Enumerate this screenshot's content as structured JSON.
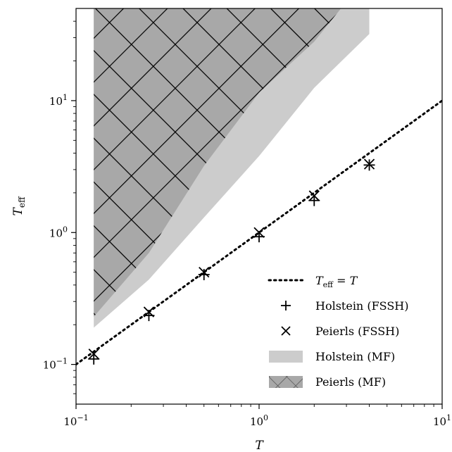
{
  "chart_data": {
    "type": "line",
    "x_scale": "log",
    "y_scale": "log",
    "xlim": [
      0.1,
      10
    ],
    "ylim": [
      0.05,
      50
    ],
    "xlabel": "T",
    "ylabel_base": "T",
    "ylabel_sub": "eff",
    "x_ticks": [
      {
        "value": 0.1,
        "base": "10",
        "exp": "−1"
      },
      {
        "value": 1,
        "base": "10",
        "exp": "0"
      },
      {
        "value": 10,
        "base": "10",
        "exp": "1"
      }
    ],
    "y_ticks": [
      {
        "value": 0.1,
        "base": "10",
        "exp": "−1"
      },
      {
        "value": 1,
        "base": "10",
        "exp": "0"
      },
      {
        "value": 10,
        "base": "10",
        "exp": "1"
      }
    ],
    "grid": false,
    "legend_position": "lower-right",
    "series": [
      {
        "name": "T_eff = T",
        "label_base": "T",
        "label_sub": "eff",
        "label_rest": " = T",
        "kind": "line",
        "style": "dotted",
        "x": [
          0.1,
          10
        ],
        "y": [
          0.1,
          10
        ]
      },
      {
        "name": "Holstein (FSSH)",
        "kind": "marker",
        "marker": "plus",
        "x": [
          0.125,
          0.25,
          0.5,
          1.0,
          2.0,
          4.0
        ],
        "y": [
          0.11,
          0.235,
          0.48,
          0.93,
          1.75,
          3.25
        ]
      },
      {
        "name": "Peierls (FSSH)",
        "kind": "marker",
        "marker": "cross",
        "x": [
          0.125,
          0.25,
          0.5,
          1.0,
          2.0,
          4.0
        ],
        "y": [
          0.12,
          0.25,
          0.5,
          1.0,
          1.9,
          3.3
        ]
      },
      {
        "name": "Holstein (MF)",
        "kind": "band",
        "color": "#cccccc",
        "x": [
          0.125,
          0.25,
          0.5,
          1.0,
          2.0,
          4.0
        ],
        "lower": [
          0.19,
          0.44,
          1.3,
          3.8,
          12.5,
          32
        ],
        "upper": [
          50,
          50,
          50,
          50,
          50,
          50
        ]
      },
      {
        "name": "Peierls (MF)",
        "kind": "band",
        "color": "#a8a8a8",
        "hatch": "cross",
        "x": [
          0.125,
          0.25,
          0.5,
          1.0,
          2.0,
          2.8
        ],
        "lower": [
          0.23,
          0.7,
          3.2,
          11.5,
          28,
          50
        ],
        "upper": [
          50,
          50,
          50,
          50,
          50,
          50
        ]
      }
    ]
  }
}
